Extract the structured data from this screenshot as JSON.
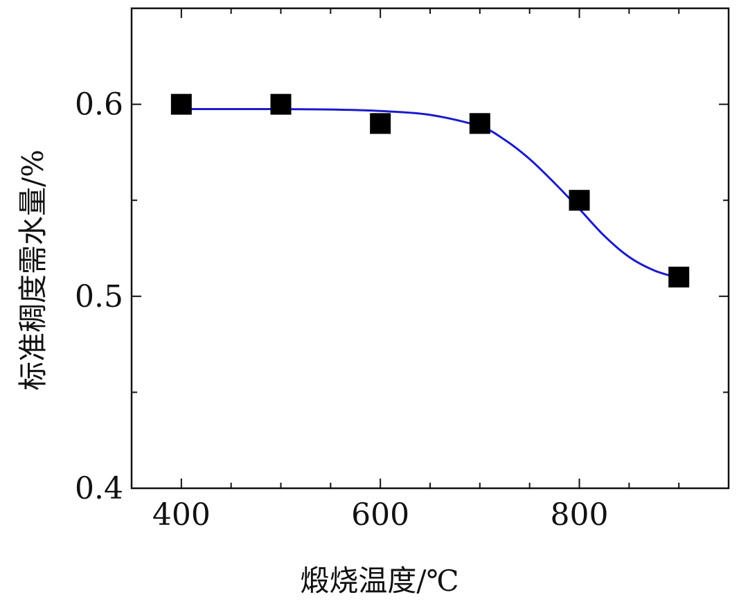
{
  "chart_data": {
    "type": "scatter",
    "title": "",
    "xlabel": "煅烧温度/℃",
    "ylabel": "标准稠度需水量/%",
    "xlim": [
      350,
      950
    ],
    "ylim": [
      0.4,
      0.65
    ],
    "x_ticks": [
      400,
      600,
      800
    ],
    "x_tick_labels": [
      "400",
      "600",
      "800"
    ],
    "x_minor_ticks": [
      450,
      500,
      550,
      650,
      700,
      750,
      850,
      900
    ],
    "y_ticks": [
      0.4,
      0.5,
      0.6
    ],
    "y_tick_labels": [
      "0.4",
      "0.5",
      "0.6"
    ],
    "y_minor_ticks": [
      0.45,
      0.55
    ],
    "grid": false,
    "series": [
      {
        "type": "scatter",
        "marker": "square",
        "color": "#000000",
        "x": [
          400,
          500,
          600,
          700,
          800,
          900
        ],
        "y": [
          0.6,
          0.6,
          0.59,
          0.59,
          0.55,
          0.51
        ]
      },
      {
        "type": "line",
        "color": "#1a1acc",
        "x": [
          400,
          450,
          500,
          550,
          600,
          650,
          700,
          725,
          750,
          775,
          800,
          825,
          850,
          875,
          900
        ],
        "y": [
          0.5975,
          0.5975,
          0.5975,
          0.5973,
          0.5965,
          0.5945,
          0.5885,
          0.5815,
          0.5715,
          0.559,
          0.5455,
          0.5315,
          0.5205,
          0.5135,
          0.5095
        ]
      }
    ]
  }
}
